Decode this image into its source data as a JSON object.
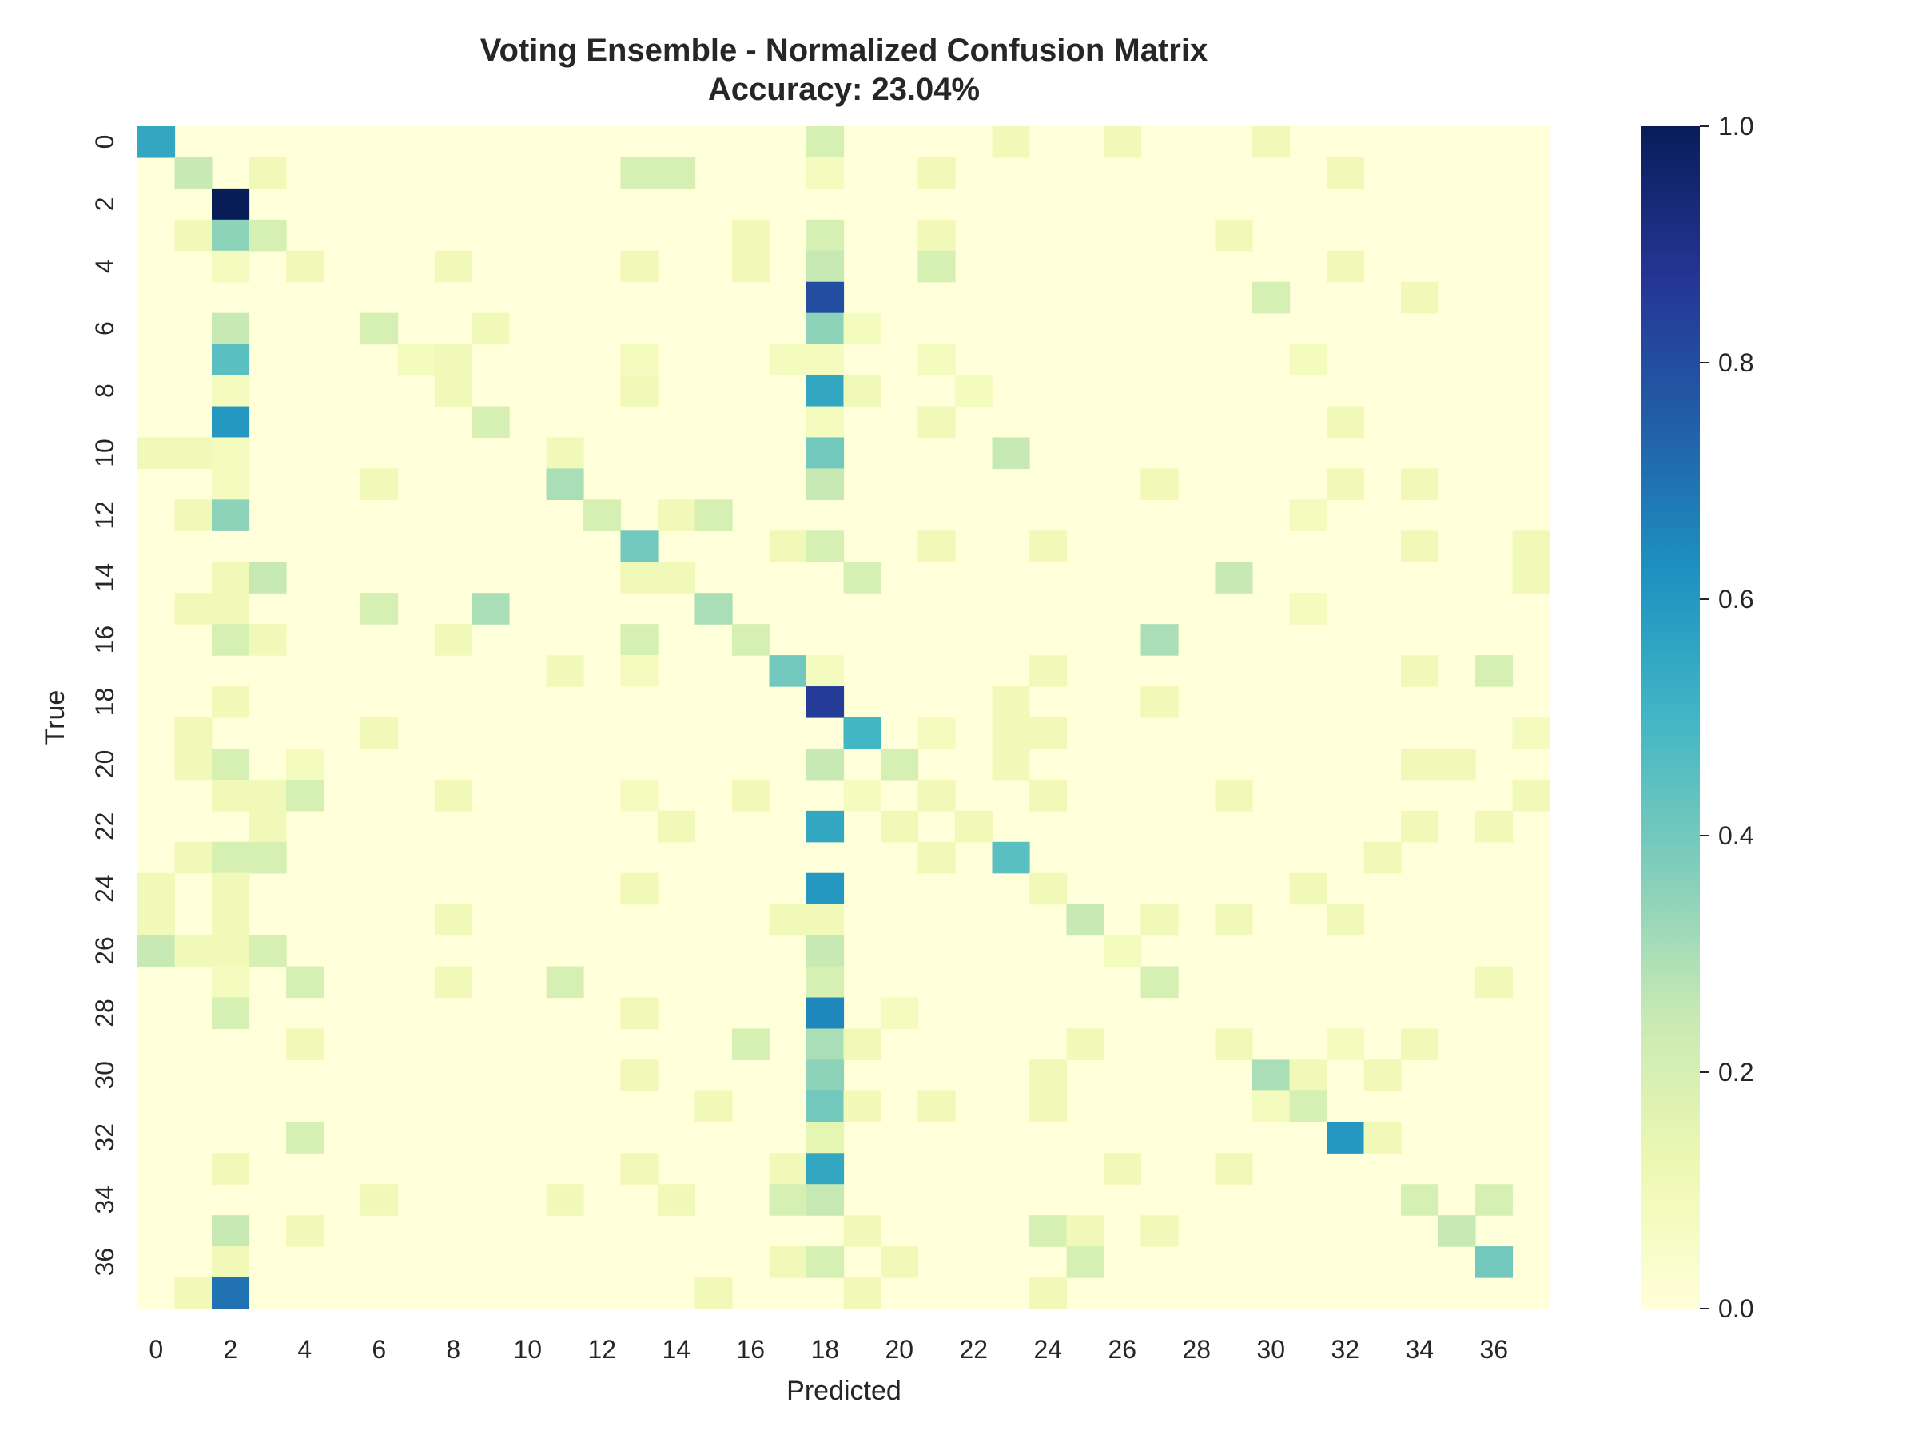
{
  "chart_data": {
    "type": "heatmap",
    "title": "Voting Ensemble - Normalized Confusion Matrix",
    "subtitle": "Accuracy: 23.04%",
    "xlabel": "Predicted",
    "ylabel": "True",
    "n_classes": 38,
    "x_tick_labels": [
      "0",
      "2",
      "4",
      "6",
      "8",
      "10",
      "12",
      "14",
      "16",
      "18",
      "20",
      "22",
      "24",
      "26",
      "28",
      "30",
      "32",
      "34",
      "36"
    ],
    "y_tick_labels": [
      "0",
      "2",
      "4",
      "6",
      "8",
      "10",
      "12",
      "14",
      "16",
      "18",
      "20",
      "22",
      "24",
      "26",
      "28",
      "30",
      "32",
      "34",
      "36"
    ],
    "colorbar": {
      "ticks": [
        "0.0",
        "0.2",
        "0.4",
        "0.6",
        "0.8",
        "1.0"
      ],
      "range": [
        0,
        1
      ]
    },
    "colormap": "YlGnBu",
    "colormap_stops": [
      "#ffffd9",
      "#edf8b1",
      "#c7e9b4",
      "#7fcdbb",
      "#41b6c4",
      "#1d91c0",
      "#225ea8",
      "#253494",
      "#081d58"
    ],
    "cells_note_format": "[true_row, predicted_col, normalized_value]; all unlisted cells are 0",
    "cells": [
      [
        0,
        0,
        0.55
      ],
      [
        0,
        18,
        0.2
      ],
      [
        0,
        23,
        0.1
      ],
      [
        0,
        26,
        0.1
      ],
      [
        0,
        30,
        0.1
      ],
      [
        1,
        1,
        0.25
      ],
      [
        1,
        3,
        0.1
      ],
      [
        1,
        13,
        0.2
      ],
      [
        1,
        14,
        0.2
      ],
      [
        1,
        18,
        0.08
      ],
      [
        1,
        21,
        0.1
      ],
      [
        1,
        32,
        0.1
      ],
      [
        2,
        2,
        1.0
      ],
      [
        3,
        1,
        0.1
      ],
      [
        3,
        2,
        0.35
      ],
      [
        3,
        3,
        0.2
      ],
      [
        3,
        16,
        0.1
      ],
      [
        3,
        18,
        0.2
      ],
      [
        3,
        21,
        0.1
      ],
      [
        3,
        29,
        0.1
      ],
      [
        4,
        2,
        0.08
      ],
      [
        4,
        4,
        0.1
      ],
      [
        4,
        8,
        0.1
      ],
      [
        4,
        13,
        0.1
      ],
      [
        4,
        16,
        0.1
      ],
      [
        4,
        18,
        0.25
      ],
      [
        4,
        21,
        0.2
      ],
      [
        4,
        32,
        0.1
      ],
      [
        5,
        18,
        0.8
      ],
      [
        5,
        30,
        0.2
      ],
      [
        5,
        34,
        0.1
      ],
      [
        6,
        2,
        0.25
      ],
      [
        6,
        6,
        0.2
      ],
      [
        6,
        9,
        0.1
      ],
      [
        6,
        18,
        0.35
      ],
      [
        6,
        19,
        0.08
      ],
      [
        7,
        2,
        0.45
      ],
      [
        7,
        7,
        0.08
      ],
      [
        7,
        8,
        0.1
      ],
      [
        7,
        13,
        0.08
      ],
      [
        7,
        17,
        0.08
      ],
      [
        7,
        18,
        0.08
      ],
      [
        7,
        21,
        0.08
      ],
      [
        7,
        31,
        0.08
      ],
      [
        8,
        2,
        0.08
      ],
      [
        8,
        8,
        0.1
      ],
      [
        8,
        13,
        0.1
      ],
      [
        8,
        18,
        0.55
      ],
      [
        8,
        19,
        0.1
      ],
      [
        8,
        22,
        0.08
      ],
      [
        9,
        2,
        0.6
      ],
      [
        9,
        9,
        0.2
      ],
      [
        9,
        18,
        0.08
      ],
      [
        9,
        21,
        0.1
      ],
      [
        9,
        32,
        0.1
      ],
      [
        10,
        0,
        0.1
      ],
      [
        10,
        1,
        0.1
      ],
      [
        10,
        2,
        0.08
      ],
      [
        10,
        11,
        0.1
      ],
      [
        10,
        18,
        0.4
      ],
      [
        10,
        23,
        0.25
      ],
      [
        11,
        2,
        0.08
      ],
      [
        11,
        6,
        0.1
      ],
      [
        11,
        11,
        0.3
      ],
      [
        11,
        18,
        0.25
      ],
      [
        11,
        27,
        0.1
      ],
      [
        11,
        32,
        0.1
      ],
      [
        11,
        34,
        0.1
      ],
      [
        12,
        1,
        0.1
      ],
      [
        12,
        2,
        0.35
      ],
      [
        12,
        12,
        0.2
      ],
      [
        12,
        14,
        0.1
      ],
      [
        12,
        15,
        0.2
      ],
      [
        12,
        31,
        0.08
      ],
      [
        13,
        13,
        0.4
      ],
      [
        13,
        17,
        0.1
      ],
      [
        13,
        18,
        0.2
      ],
      [
        13,
        21,
        0.1
      ],
      [
        13,
        24,
        0.1
      ],
      [
        13,
        34,
        0.1
      ],
      [
        13,
        37,
        0.1
      ],
      [
        14,
        2,
        0.1
      ],
      [
        14,
        3,
        0.25
      ],
      [
        14,
        13,
        0.1
      ],
      [
        14,
        14,
        0.1
      ],
      [
        14,
        19,
        0.2
      ],
      [
        14,
        29,
        0.25
      ],
      [
        14,
        37,
        0.1
      ],
      [
        15,
        1,
        0.1
      ],
      [
        15,
        2,
        0.1
      ],
      [
        15,
        6,
        0.2
      ],
      [
        15,
        9,
        0.3
      ],
      [
        15,
        15,
        0.3
      ],
      [
        15,
        31,
        0.08
      ],
      [
        16,
        2,
        0.2
      ],
      [
        16,
        3,
        0.1
      ],
      [
        16,
        8,
        0.1
      ],
      [
        16,
        13,
        0.2
      ],
      [
        16,
        16,
        0.2
      ],
      [
        16,
        27,
        0.3
      ],
      [
        17,
        11,
        0.1
      ],
      [
        17,
        13,
        0.08
      ],
      [
        17,
        17,
        0.4
      ],
      [
        17,
        18,
        0.08
      ],
      [
        17,
        24,
        0.1
      ],
      [
        17,
        34,
        0.1
      ],
      [
        17,
        36,
        0.2
      ],
      [
        18,
        2,
        0.1
      ],
      [
        18,
        18,
        0.85
      ],
      [
        18,
        23,
        0.1
      ],
      [
        18,
        27,
        0.1
      ],
      [
        19,
        1,
        0.1
      ],
      [
        19,
        6,
        0.1
      ],
      [
        19,
        19,
        0.5
      ],
      [
        19,
        21,
        0.08
      ],
      [
        19,
        23,
        0.1
      ],
      [
        19,
        24,
        0.1
      ],
      [
        19,
        37,
        0.08
      ],
      [
        20,
        1,
        0.1
      ],
      [
        20,
        2,
        0.2
      ],
      [
        20,
        4,
        0.08
      ],
      [
        20,
        18,
        0.25
      ],
      [
        20,
        20,
        0.2
      ],
      [
        20,
        23,
        0.1
      ],
      [
        20,
        34,
        0.1
      ],
      [
        20,
        35,
        0.1
      ],
      [
        21,
        2,
        0.1
      ],
      [
        21,
        3,
        0.1
      ],
      [
        21,
        4,
        0.2
      ],
      [
        21,
        8,
        0.1
      ],
      [
        21,
        13,
        0.08
      ],
      [
        21,
        16,
        0.1
      ],
      [
        21,
        19,
        0.08
      ],
      [
        21,
        21,
        0.1
      ],
      [
        21,
        24,
        0.1
      ],
      [
        21,
        29,
        0.1
      ],
      [
        21,
        37,
        0.1
      ],
      [
        22,
        3,
        0.1
      ],
      [
        22,
        14,
        0.1
      ],
      [
        22,
        18,
        0.55
      ],
      [
        22,
        20,
        0.1
      ],
      [
        22,
        22,
        0.1
      ],
      [
        22,
        34,
        0.1
      ],
      [
        22,
        36,
        0.1
      ],
      [
        23,
        1,
        0.1
      ],
      [
        23,
        2,
        0.2
      ],
      [
        23,
        3,
        0.2
      ],
      [
        23,
        21,
        0.1
      ],
      [
        23,
        23,
        0.45
      ],
      [
        23,
        33,
        0.1
      ],
      [
        24,
        0,
        0.1
      ],
      [
        24,
        2,
        0.1
      ],
      [
        24,
        13,
        0.1
      ],
      [
        24,
        18,
        0.6
      ],
      [
        24,
        24,
        0.1
      ],
      [
        24,
        31,
        0.1
      ],
      [
        25,
        0,
        0.1
      ],
      [
        25,
        2,
        0.1
      ],
      [
        25,
        8,
        0.1
      ],
      [
        25,
        17,
        0.1
      ],
      [
        25,
        18,
        0.1
      ],
      [
        25,
        25,
        0.25
      ],
      [
        25,
        27,
        0.1
      ],
      [
        25,
        29,
        0.1
      ],
      [
        25,
        32,
        0.1
      ],
      [
        26,
        0,
        0.25
      ],
      [
        26,
        1,
        0.1
      ],
      [
        26,
        2,
        0.1
      ],
      [
        26,
        3,
        0.2
      ],
      [
        26,
        18,
        0.25
      ],
      [
        26,
        26,
        0.08
      ],
      [
        27,
        2,
        0.08
      ],
      [
        27,
        4,
        0.2
      ],
      [
        27,
        8,
        0.1
      ],
      [
        27,
        11,
        0.2
      ],
      [
        27,
        18,
        0.2
      ],
      [
        27,
        27,
        0.2
      ],
      [
        27,
        36,
        0.1
      ],
      [
        28,
        2,
        0.2
      ],
      [
        28,
        13,
        0.1
      ],
      [
        28,
        18,
        0.65
      ],
      [
        28,
        20,
        0.08
      ],
      [
        29,
        4,
        0.1
      ],
      [
        29,
        16,
        0.2
      ],
      [
        29,
        18,
        0.3
      ],
      [
        29,
        19,
        0.1
      ],
      [
        29,
        25,
        0.1
      ],
      [
        29,
        29,
        0.1
      ],
      [
        29,
        32,
        0.08
      ],
      [
        29,
        34,
        0.1
      ],
      [
        30,
        13,
        0.1
      ],
      [
        30,
        18,
        0.35
      ],
      [
        30,
        24,
        0.1
      ],
      [
        30,
        30,
        0.3
      ],
      [
        30,
        31,
        0.1
      ],
      [
        30,
        33,
        0.1
      ],
      [
        31,
        15,
        0.1
      ],
      [
        31,
        18,
        0.4
      ],
      [
        31,
        19,
        0.1
      ],
      [
        31,
        21,
        0.1
      ],
      [
        31,
        24,
        0.1
      ],
      [
        31,
        30,
        0.08
      ],
      [
        31,
        31,
        0.2
      ],
      [
        32,
        4,
        0.2
      ],
      [
        32,
        18,
        0.15
      ],
      [
        32,
        32,
        0.6
      ],
      [
        32,
        33,
        0.1
      ],
      [
        33,
        2,
        0.1
      ],
      [
        33,
        13,
        0.1
      ],
      [
        33,
        17,
        0.1
      ],
      [
        33,
        18,
        0.55
      ],
      [
        33,
        26,
        0.1
      ],
      [
        33,
        29,
        0.1
      ],
      [
        34,
        6,
        0.1
      ],
      [
        34,
        11,
        0.1
      ],
      [
        34,
        14,
        0.1
      ],
      [
        34,
        17,
        0.2
      ],
      [
        34,
        18,
        0.25
      ],
      [
        34,
        34,
        0.2
      ],
      [
        34,
        36,
        0.2
      ],
      [
        35,
        2,
        0.25
      ],
      [
        35,
        4,
        0.1
      ],
      [
        35,
        19,
        0.1
      ],
      [
        35,
        24,
        0.2
      ],
      [
        35,
        25,
        0.1
      ],
      [
        35,
        27,
        0.1
      ],
      [
        35,
        35,
        0.25
      ],
      [
        36,
        2,
        0.1
      ],
      [
        36,
        17,
        0.1
      ],
      [
        36,
        18,
        0.2
      ],
      [
        36,
        20,
        0.1
      ],
      [
        36,
        25,
        0.2
      ],
      [
        36,
        36,
        0.4
      ],
      [
        37,
        1,
        0.1
      ],
      [
        37,
        2,
        0.7
      ],
      [
        37,
        15,
        0.1
      ],
      [
        37,
        19,
        0.1
      ],
      [
        37,
        24,
        0.1
      ]
    ]
  }
}
